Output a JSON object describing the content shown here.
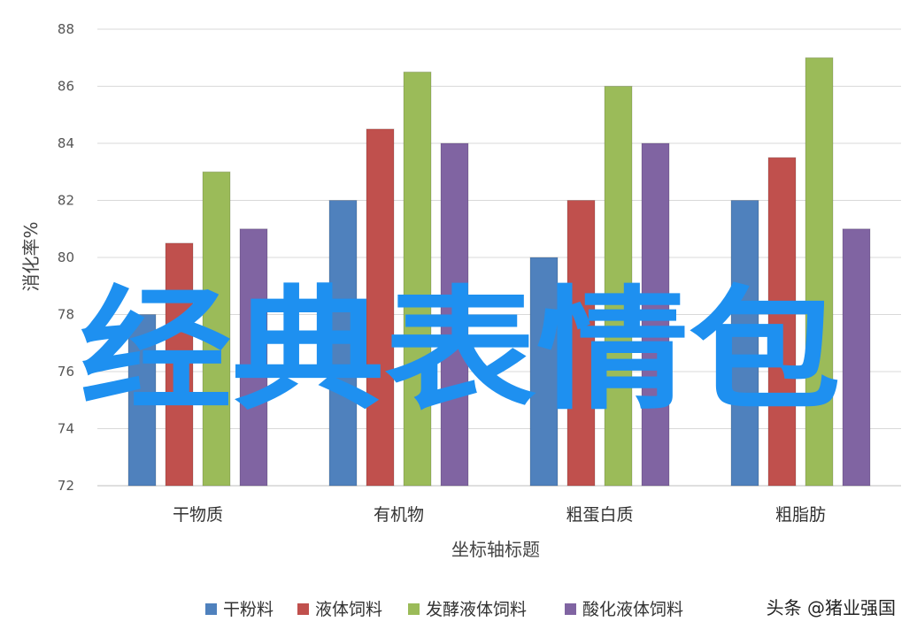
{
  "chart_data": {
    "type": "bar",
    "categories": [
      "干物质",
      "有机物",
      "粗蛋白质",
      "粗脂肪"
    ],
    "series": [
      {
        "name": "干粉料",
        "values": [
          78,
          82,
          80,
          82
        ],
        "color": "#4f81bd"
      },
      {
        "name": "液体饲料",
        "values": [
          80.5,
          84.5,
          82,
          83.5
        ],
        "color": "#c0504d"
      },
      {
        "name": "发酵液体饲料",
        "values": [
          83,
          86.5,
          86,
          87
        ],
        "color": "#9bbb59"
      },
      {
        "name": "酸化液体饲料",
        "values": [
          81,
          84,
          84,
          81
        ],
        "color": "#8064a2"
      }
    ],
    "ylim": [
      72,
      88
    ],
    "yticks": [
      72,
      74,
      76,
      78,
      80,
      82,
      84,
      86,
      88
    ],
    "xlabel": "坐标轴标题",
    "ylabel": "消化率%",
    "grid": true,
    "legend": "bottom"
  },
  "overlay": {
    "text": "经典表情包"
  },
  "watermark": {
    "text": "头条 @猪业强国"
  }
}
